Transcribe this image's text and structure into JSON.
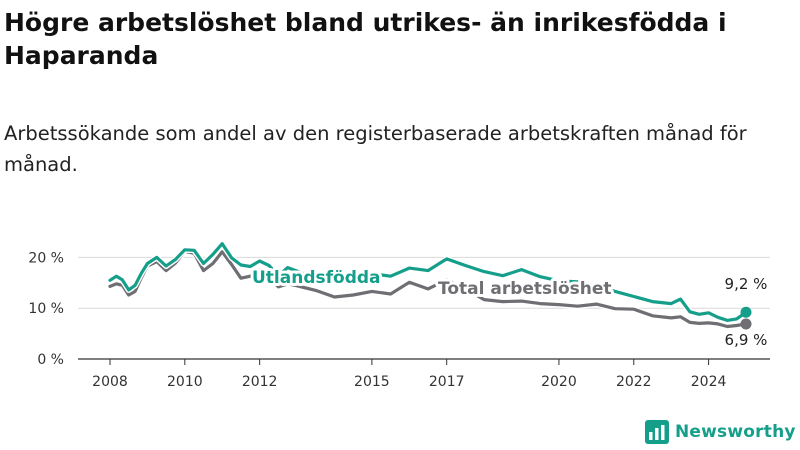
{
  "title": "Högre arbetslöshet bland utrikes- än inrikesfödda i Haparanda",
  "subtitle": "Arbetssökande som andel av den registerbaserade arbetskraften månad för månad.",
  "brand": {
    "name": "Newsworthy"
  },
  "colors": {
    "foreign_born": "#159f8b",
    "total": "#6e6e73",
    "axis": "#333333",
    "grid": "#d9d9d9"
  },
  "chart_data": {
    "type": "line",
    "grid": true,
    "ylim": [
      0,
      25
    ],
    "y_ticks": [
      {
        "value": 0,
        "label": "0 %"
      },
      {
        "value": 10,
        "label": "10 %"
      },
      {
        "value": 20,
        "label": "20 %"
      }
    ],
    "x_ticks": [
      {
        "value": 2008,
        "label": "2008"
      },
      {
        "value": 2010,
        "label": "2010"
      },
      {
        "value": 2012,
        "label": "2012"
      },
      {
        "value": 2015,
        "label": "2015"
      },
      {
        "value": 2017,
        "label": "2017"
      },
      {
        "value": 2020,
        "label": "2020"
      },
      {
        "value": 2022,
        "label": "2022"
      },
      {
        "value": 2024,
        "label": "2024"
      }
    ],
    "xlim": [
      2008,
      2025
    ],
    "series": [
      {
        "name": "Utlandsfödda",
        "end_label": "9,2 %",
        "x": [
          2008.0,
          2008.17,
          2008.33,
          2008.5,
          2008.67,
          2008.83,
          2009.0,
          2009.25,
          2009.5,
          2009.75,
          2010.0,
          2010.25,
          2010.5,
          2010.75,
          2011.0,
          2011.25,
          2011.5,
          2011.75,
          2012.0,
          2012.25,
          2012.5,
          2012.75,
          2013.0,
          2013.5,
          2014.0,
          2014.5,
          2015.0,
          2015.5,
          2016.0,
          2016.5,
          2017.0,
          2017.5,
          2018.0,
          2018.5,
          2019.0,
          2019.5,
          2020.0,
          2020.5,
          2021.0,
          2021.5,
          2022.0,
          2022.5,
          2023.0,
          2023.25,
          2023.5,
          2023.75,
          2024.0,
          2024.25,
          2024.5,
          2024.75,
          2025.0
        ],
        "values": [
          15.5,
          16.3,
          15.6,
          13.6,
          14.5,
          16.8,
          18.8,
          20.0,
          18.3,
          19.6,
          21.5,
          21.4,
          18.8,
          20.6,
          22.7,
          19.9,
          18.5,
          18.2,
          19.3,
          18.4,
          16.4,
          18.0,
          17.3,
          15.8,
          16.2,
          16.7,
          16.8,
          16.3,
          17.9,
          17.4,
          19.7,
          18.4,
          17.2,
          16.4,
          17.6,
          16.2,
          15.4,
          15.2,
          14.4,
          13.3,
          12.3,
          11.3,
          10.9,
          11.8,
          9.3,
          8.8,
          9.1,
          8.2,
          7.6,
          7.9,
          9.2
        ]
      },
      {
        "name": "Total arbetslöshet",
        "end_label": "6,9 %",
        "x": [
          2008.0,
          2008.17,
          2008.33,
          2008.5,
          2008.67,
          2008.83,
          2009.0,
          2009.25,
          2009.5,
          2009.75,
          2010.0,
          2010.25,
          2010.5,
          2010.75,
          2011.0,
          2011.25,
          2011.5,
          2011.75,
          2012.0,
          2012.25,
          2012.5,
          2012.75,
          2013.0,
          2013.5,
          2014.0,
          2014.5,
          2015.0,
          2015.5,
          2016.0,
          2016.5,
          2017.0,
          2017.5,
          2018.0,
          2018.5,
          2019.0,
          2019.5,
          2020.0,
          2020.5,
          2021.0,
          2021.5,
          2022.0,
          2022.5,
          2023.0,
          2023.25,
          2023.5,
          2023.75,
          2024.0,
          2024.25,
          2024.5,
          2024.75,
          2025.0
        ],
        "values": [
          14.3,
          14.8,
          14.5,
          12.6,
          13.3,
          15.9,
          18.3,
          19.2,
          17.4,
          18.9,
          21.2,
          20.8,
          17.4,
          18.8,
          21.1,
          18.6,
          15.9,
          16.3,
          17.6,
          16.0,
          14.2,
          14.8,
          14.4,
          13.5,
          12.2,
          12.6,
          13.3,
          12.8,
          15.1,
          13.8,
          15.6,
          13.8,
          11.7,
          11.3,
          11.4,
          10.9,
          10.7,
          10.4,
          10.8,
          9.9,
          9.8,
          8.5,
          8.1,
          8.3,
          7.2,
          7.0,
          7.1,
          6.9,
          6.4,
          6.6,
          6.9
        ]
      }
    ]
  }
}
